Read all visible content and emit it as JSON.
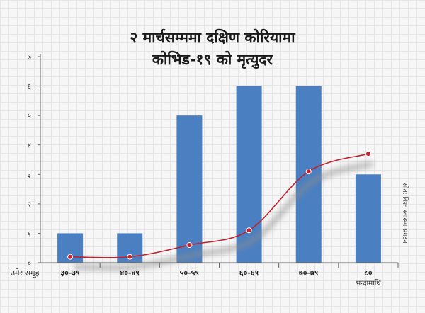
{
  "chart_data": {
    "type": "bar",
    "title_lines": [
      "२ मार्चसम्ममा दक्षिण कोरियामा",
      "कोभिड-१९ को मृत्युदर"
    ],
    "xlabel": "उमेर समूह",
    "source_note": "स्रोत: विश्व स्वास्थ्य संगठन",
    "categories": [
      {
        "label": "३०-३९",
        "sublabel": ""
      },
      {
        "label": "४०-४९",
        "sublabel": ""
      },
      {
        "label": "५०-५९",
        "sublabel": ""
      },
      {
        "label": "६०-६९",
        "sublabel": ""
      },
      {
        "label": "७०-७९",
        "sublabel": ""
      },
      {
        "label": "८०",
        "sublabel": "भन्दामाथि"
      }
    ],
    "values": [
      1,
      1,
      5,
      6,
      6,
      3
    ],
    "line_values": [
      0.2,
      0.2,
      0.6,
      1.1,
      3.1,
      3.7
    ],
    "ylim": [
      0,
      7
    ],
    "yticks": [
      {
        "value": 0,
        "label": "०"
      },
      {
        "value": 1,
        "label": "१"
      },
      {
        "value": 2,
        "label": "२"
      },
      {
        "value": 3,
        "label": "३"
      },
      {
        "value": 4,
        "label": "४"
      },
      {
        "value": 5,
        "label": "५"
      },
      {
        "value": 6,
        "label": "६"
      },
      {
        "value": 7,
        "label": "७"
      }
    ],
    "colors": {
      "bar": "#4a7fc1",
      "line": "#c0212e",
      "point_fill": "#ffffff",
      "axis": "#666666"
    }
  }
}
